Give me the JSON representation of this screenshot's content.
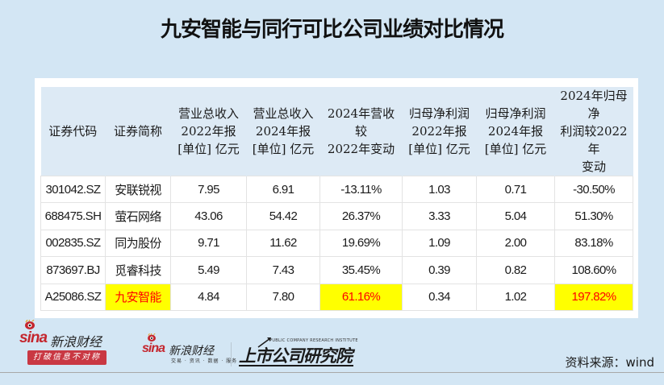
{
  "title": "九安智能与同行可比公司业绩对比情况",
  "table": {
    "headers": [
      [
        "证券代码"
      ],
      [
        "证券简称"
      ],
      [
        "营业总收入",
        "2022年报",
        "[单位] 亿元"
      ],
      [
        "营业总收入",
        "2024年报",
        "[单位] 亿元"
      ],
      [
        "2024年营收较",
        "2022年变动"
      ],
      [
        "归母净利润",
        "2022年报",
        "[单位] 亿元"
      ],
      [
        "归母净利润",
        "2024年报",
        "[单位] 亿元"
      ],
      [
        "2024年归母净",
        "利润较2022年",
        "变动"
      ]
    ],
    "rows": [
      [
        "301042.SZ",
        "安联锐视",
        "7.95",
        "6.91",
        "-13.11%",
        "1.03",
        "0.71",
        "-30.50%"
      ],
      [
        "688475.SH",
        "萤石网络",
        "43.06",
        "54.42",
        "26.37%",
        "3.33",
        "5.04",
        "51.30%"
      ],
      [
        "002835.SZ",
        "同为股份",
        "9.71",
        "11.62",
        "19.69%",
        "1.09",
        "2.00",
        "83.18%"
      ],
      [
        "873697.BJ",
        "觅睿科技",
        "5.49",
        "7.43",
        "35.45%",
        "0.39",
        "0.82",
        "108.60%"
      ],
      [
        "A25086.SZ",
        "九安智能",
        "4.84",
        "7.80",
        "61.16%",
        "0.34",
        "1.02",
        "197.82%"
      ]
    ],
    "highlight": {
      "row": 4,
      "columns": [
        1,
        4,
        7
      ],
      "background": "#ffff00",
      "text_color": "#ff0000"
    }
  },
  "logos": {
    "sina_finance_main": {
      "brand": "sina",
      "name": "新浪财经",
      "slogan": "打破信息不对称"
    },
    "sina_finance_secondary": {
      "brand": "sina",
      "name": "新浪财经",
      "subtitle": "交易 · 资讯 · 数据 · 服务"
    },
    "research_institute": {
      "en": "PUBLIC COMPANY RESEARCH INSTITUTE",
      "name": "上市公司研究院"
    }
  },
  "source": "资料来源：wind",
  "colors": {
    "background": "#d3e6f4",
    "header_bg": "#ddeaf5",
    "highlight_bg": "#ffff00",
    "highlight_text": "#ff0000",
    "brand_red": "#c4262e"
  }
}
